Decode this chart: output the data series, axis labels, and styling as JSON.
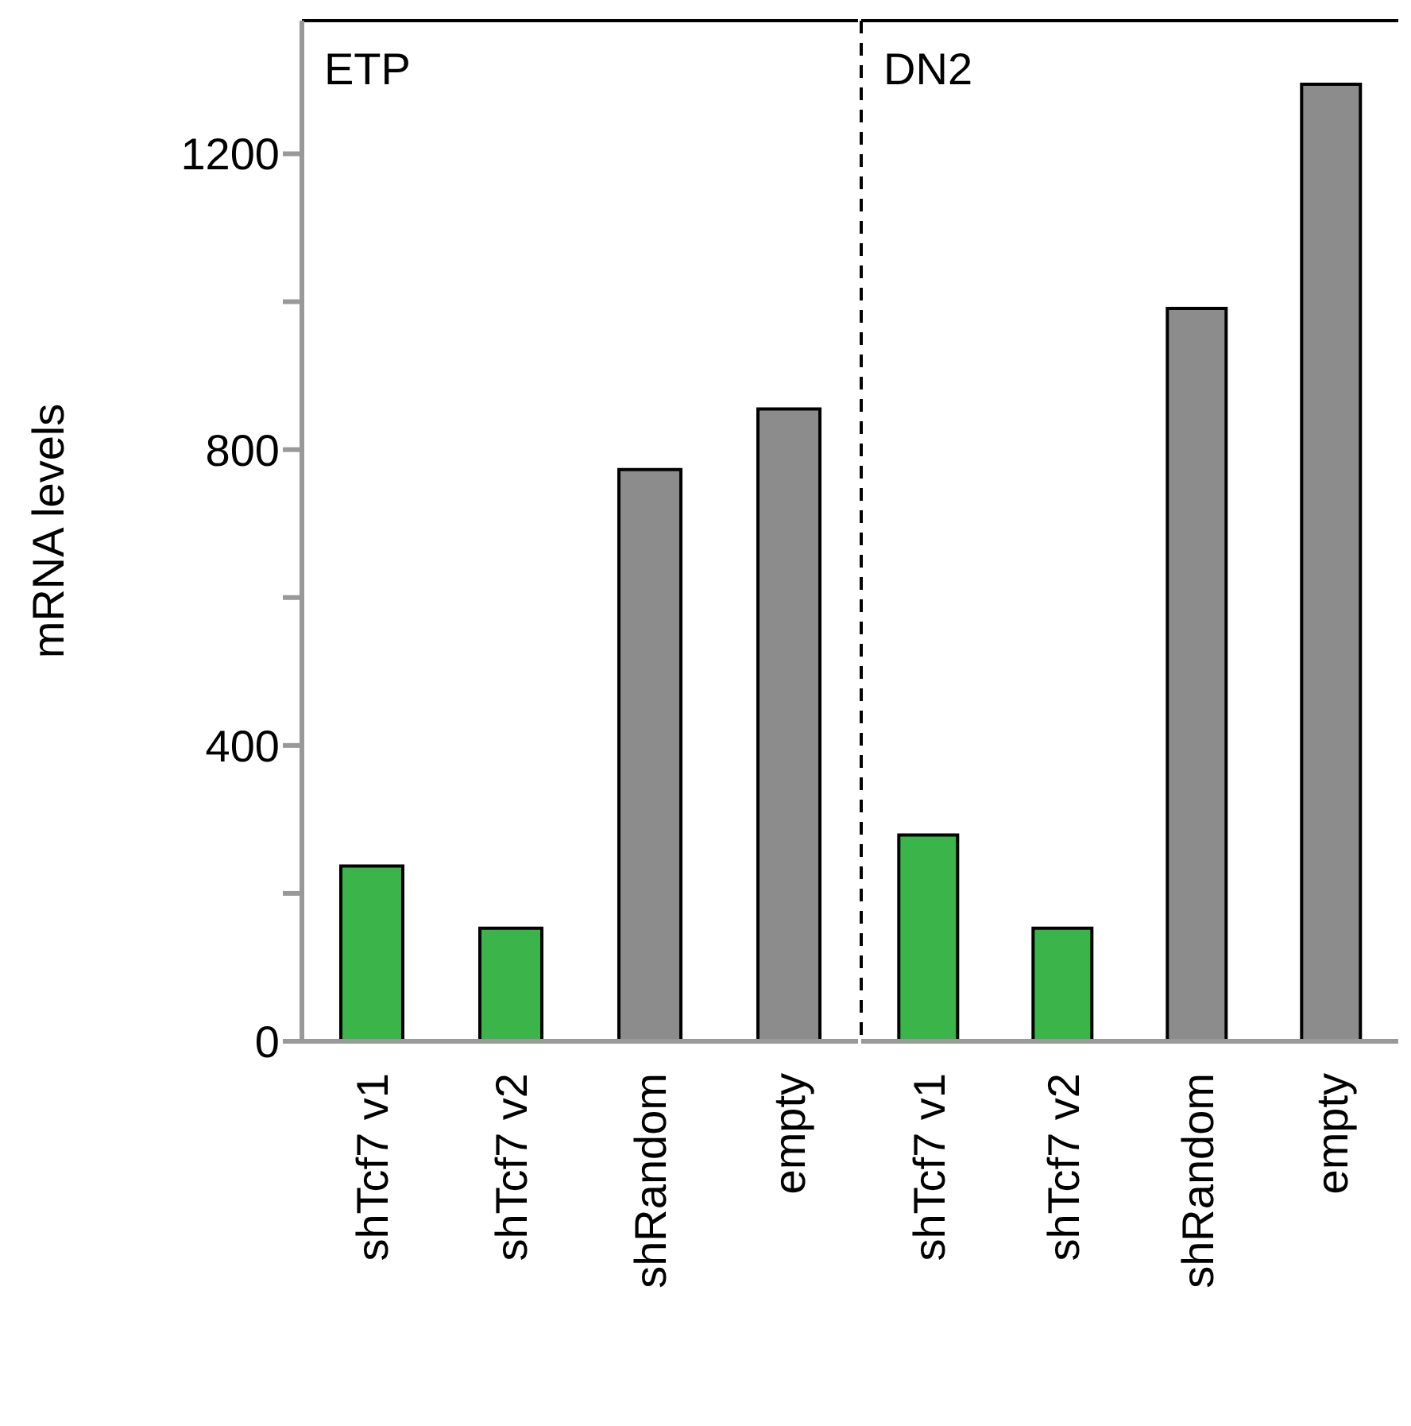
{
  "chart_data": [
    {
      "type": "bar",
      "title": "ETP",
      "ylabel": "mRNA levels",
      "categories": [
        "shTcf7 v1",
        "shTcf7 v2",
        "shRandom",
        "empty"
      ],
      "values": [
        237,
        153,
        773,
        855
      ],
      "colors": [
        "#3bb54a",
        "#3bb54a",
        "#8c8c8c",
        "#8c8c8c"
      ],
      "ylim": [
        0,
        1380
      ],
      "yticks": [
        0,
        {
          "value": 200,
          "label": null
        },
        400,
        {
          "value": 600,
          "label": null
        },
        800,
        {
          "value": 1000,
          "label": null
        },
        1200
      ],
      "grid": false
    },
    {
      "type": "bar",
      "title": "DN2",
      "categories": [
        "shTcf7 v1",
        "shTcf7 v2",
        "shRandom",
        "empty"
      ],
      "values": [
        279,
        153,
        991,
        1294
      ],
      "colors": [
        "#3bb54a",
        "#3bb54a",
        "#8c8c8c",
        "#8c8c8c"
      ],
      "ylim": [
        0,
        1380
      ],
      "tick_labels": "x",
      "grid": false
    }
  ]
}
